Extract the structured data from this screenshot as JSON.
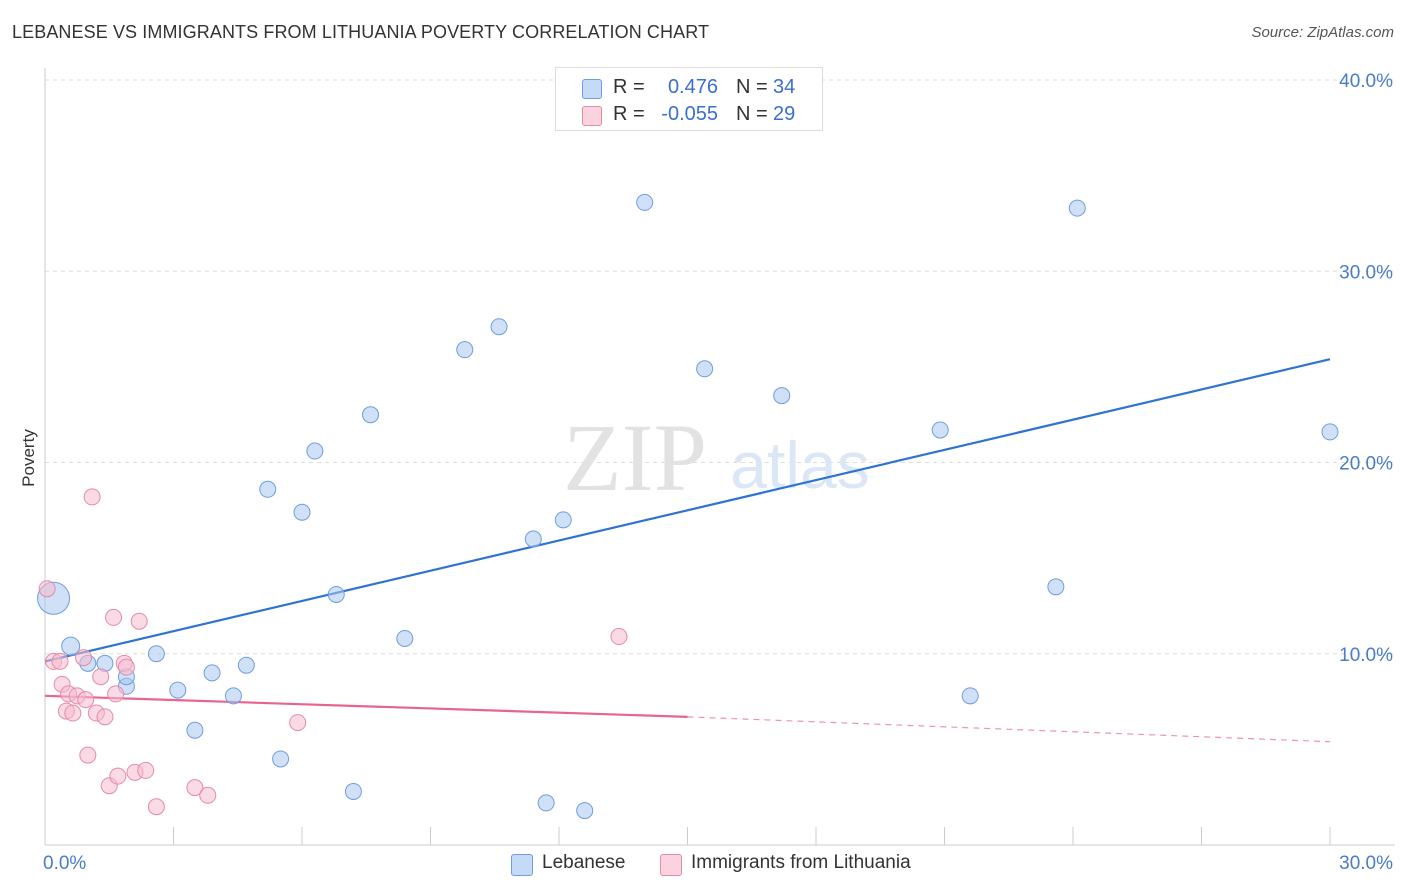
{
  "header": {
    "title": "LEBANESE VS IMMIGRANTS FROM LITHUANIA POVERTY CORRELATION CHART",
    "source": "Source: ZipAtlas.com"
  },
  "watermark": {
    "zip": "ZIP",
    "atlas": "atlas"
  },
  "legend": {
    "series": [
      {
        "r_label": "R =",
        "r_value": "0.476",
        "n_label": "N =",
        "n_value": "34"
      },
      {
        "r_label": "R =",
        "r_value": "-0.055",
        "n_label": "N =",
        "n_value": "29"
      }
    ]
  },
  "bottom_legend": [
    "Lebanese",
    "Immigrants from Lithuania"
  ],
  "chart_data": {
    "type": "scatter",
    "title": "LEBANESE VS IMMIGRANTS FROM LITHUANIA POVERTY CORRELATION CHART",
    "xlabel": "",
    "ylabel": "Poverty",
    "xlim": [
      0,
      30
    ],
    "ylim": [
      0,
      40
    ],
    "x_tick_labels": [
      "0.0%",
      "30.0%"
    ],
    "y_ticks": [
      10,
      20,
      30,
      40
    ],
    "y_tick_labels": [
      "10.0%",
      "20.0%",
      "30.0%",
      "40.0%"
    ],
    "grid": true,
    "legend_position": "top-center",
    "series": [
      {
        "name": "Lebanese",
        "color": "#a8c6f0",
        "stroke": "#6f9de0",
        "line_color": "#2f74d0",
        "r": 0.476,
        "n": 34,
        "trend": {
          "x": [
            0,
            30
          ],
          "y": [
            9.6,
            25.4
          ]
        },
        "points": [
          [
            0.2,
            12.9,
            16
          ],
          [
            0.6,
            10.4,
            9
          ],
          [
            1.0,
            9.5,
            8
          ],
          [
            1.4,
            9.5,
            8
          ],
          [
            1.9,
            8.3,
            8
          ],
          [
            2.6,
            10.0,
            8
          ],
          [
            3.1,
            8.1,
            8
          ],
          [
            3.5,
            6.0,
            8
          ],
          [
            3.9,
            9.0,
            8
          ],
          [
            4.4,
            7.8,
            8
          ],
          [
            4.7,
            9.4,
            8
          ],
          [
            5.2,
            18.6,
            8
          ],
          [
            5.5,
            4.5,
            8
          ],
          [
            6.0,
            17.4,
            8
          ],
          [
            6.3,
            20.6,
            8
          ],
          [
            6.8,
            13.1,
            8
          ],
          [
            7.2,
            2.8,
            8
          ],
          [
            7.6,
            22.5,
            8
          ],
          [
            8.4,
            10.8,
            8
          ],
          [
            9.8,
            25.9,
            8
          ],
          [
            10.6,
            27.1,
            8
          ],
          [
            11.4,
            16.0,
            8
          ],
          [
            11.7,
            2.2,
            8
          ],
          [
            12.1,
            17.0,
            8
          ],
          [
            12.6,
            1.8,
            8
          ],
          [
            14.0,
            33.6,
            8
          ],
          [
            15.4,
            24.9,
            8
          ],
          [
            17.2,
            23.5,
            8
          ],
          [
            20.9,
            21.7,
            8
          ],
          [
            21.6,
            7.8,
            8
          ],
          [
            23.6,
            13.5,
            8
          ],
          [
            24.1,
            33.3,
            8
          ],
          [
            30.0,
            21.6,
            8
          ],
          [
            1.9,
            8.8,
            8
          ]
        ]
      },
      {
        "name": "Immigrants from Lithuania",
        "color": "#f5bccd",
        "stroke": "#e68aa8",
        "line_color": "#e8648e",
        "r": -0.055,
        "n": 29,
        "trend": {
          "x": [
            0,
            15
          ],
          "y": [
            7.8,
            6.7
          ]
        },
        "trend_dashed": {
          "x": [
            15,
            30
          ],
          "y": [
            6.7,
            5.4
          ]
        },
        "points": [
          [
            0.05,
            13.4,
            8
          ],
          [
            0.2,
            9.6,
            8
          ],
          [
            0.35,
            9.6,
            8
          ],
          [
            0.4,
            8.4,
            8
          ],
          [
            0.5,
            7.0,
            8
          ],
          [
            0.55,
            7.9,
            8
          ],
          [
            0.65,
            6.9,
            8
          ],
          [
            0.75,
            7.8,
            8
          ],
          [
            0.9,
            9.8,
            8
          ],
          [
            0.95,
            7.6,
            8
          ],
          [
            1.0,
            4.7,
            8
          ],
          [
            1.1,
            18.2,
            8
          ],
          [
            1.2,
            6.9,
            8
          ],
          [
            1.3,
            8.8,
            8
          ],
          [
            1.4,
            6.7,
            8
          ],
          [
            1.5,
            3.1,
            8
          ],
          [
            1.6,
            11.9,
            8
          ],
          [
            1.65,
            7.9,
            8
          ],
          [
            1.7,
            3.6,
            8
          ],
          [
            1.85,
            9.5,
            8
          ],
          [
            1.9,
            9.3,
            8
          ],
          [
            2.1,
            3.8,
            8
          ],
          [
            2.2,
            11.7,
            8
          ],
          [
            2.35,
            3.9,
            8
          ],
          [
            2.6,
            2.0,
            8
          ],
          [
            3.5,
            3.0,
            8
          ],
          [
            3.8,
            2.6,
            8
          ],
          [
            5.9,
            6.4,
            8
          ],
          [
            13.4,
            10.9,
            8
          ]
        ]
      }
    ]
  }
}
